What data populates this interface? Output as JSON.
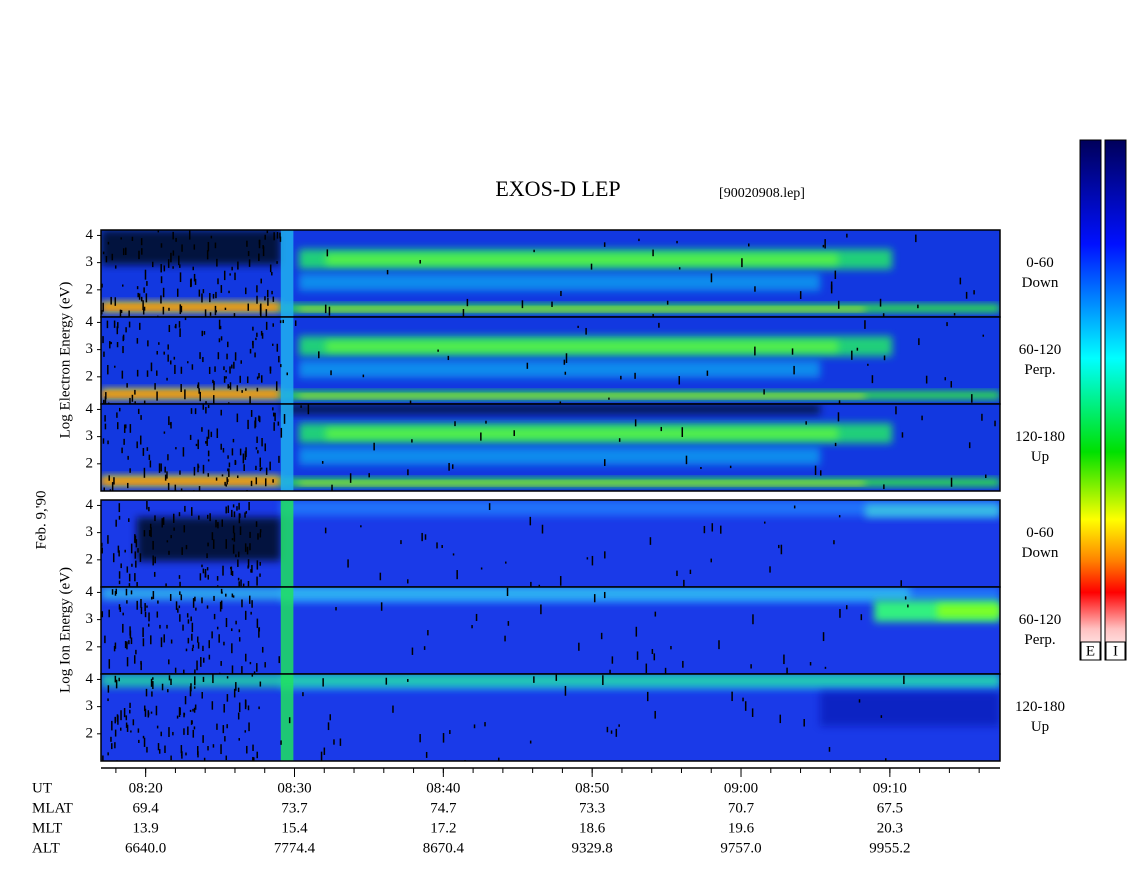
{
  "header": {
    "title": "EXOS-D LEP",
    "file": "[90020908.lep]"
  },
  "side_labels": {
    "electron": "Log Electron Energy (eV)",
    "date": "Feb. 9,'90",
    "ion": "Log Ion Energy (eV)"
  },
  "panels": [
    {
      "species": "electron",
      "top": "0-60",
      "bottom": "Down"
    },
    {
      "species": "electron",
      "top": "60-120",
      "bottom": "Perp."
    },
    {
      "species": "electron",
      "top": "120-180",
      "bottom": "Up"
    },
    {
      "species": "ion",
      "top": "0-60",
      "bottom": "Down"
    },
    {
      "species": "ion",
      "top": "60-120",
      "bottom": "Perp."
    },
    {
      "species": "ion",
      "top": "120-180",
      "bottom": "Up"
    }
  ],
  "axes": {
    "ylim": [
      1,
      4.2
    ],
    "yticks": [
      2,
      3,
      4
    ],
    "xlim": [
      17,
      77.4
    ],
    "xticks": [
      {
        "value": 20,
        "label": "08:20"
      },
      {
        "value": 30,
        "label": "08:30"
      },
      {
        "value": 40,
        "label": "08:40"
      },
      {
        "value": 50,
        "label": "08:50"
      },
      {
        "value": 60,
        "label": "09:00"
      },
      {
        "value": 70,
        "label": "09:10"
      }
    ]
  },
  "orbit": {
    "rows": [
      {
        "label": "UT"
      },
      {
        "label": "MLAT",
        "values": [
          "69.4",
          "73.7",
          "74.7",
          "73.3",
          "70.7",
          "67.5"
        ]
      },
      {
        "label": "MLT",
        "values": [
          "13.9",
          "15.4",
          "17.2",
          "18.6",
          "19.6",
          "20.3"
        ]
      },
      {
        "label": "ALT",
        "values": [
          "6640.0",
          "7774.4",
          "8670.4",
          "9329.8",
          "9757.0",
          "9955.2"
        ]
      }
    ]
  },
  "colorbar": {
    "labels": [
      "E",
      "I"
    ]
  }
}
